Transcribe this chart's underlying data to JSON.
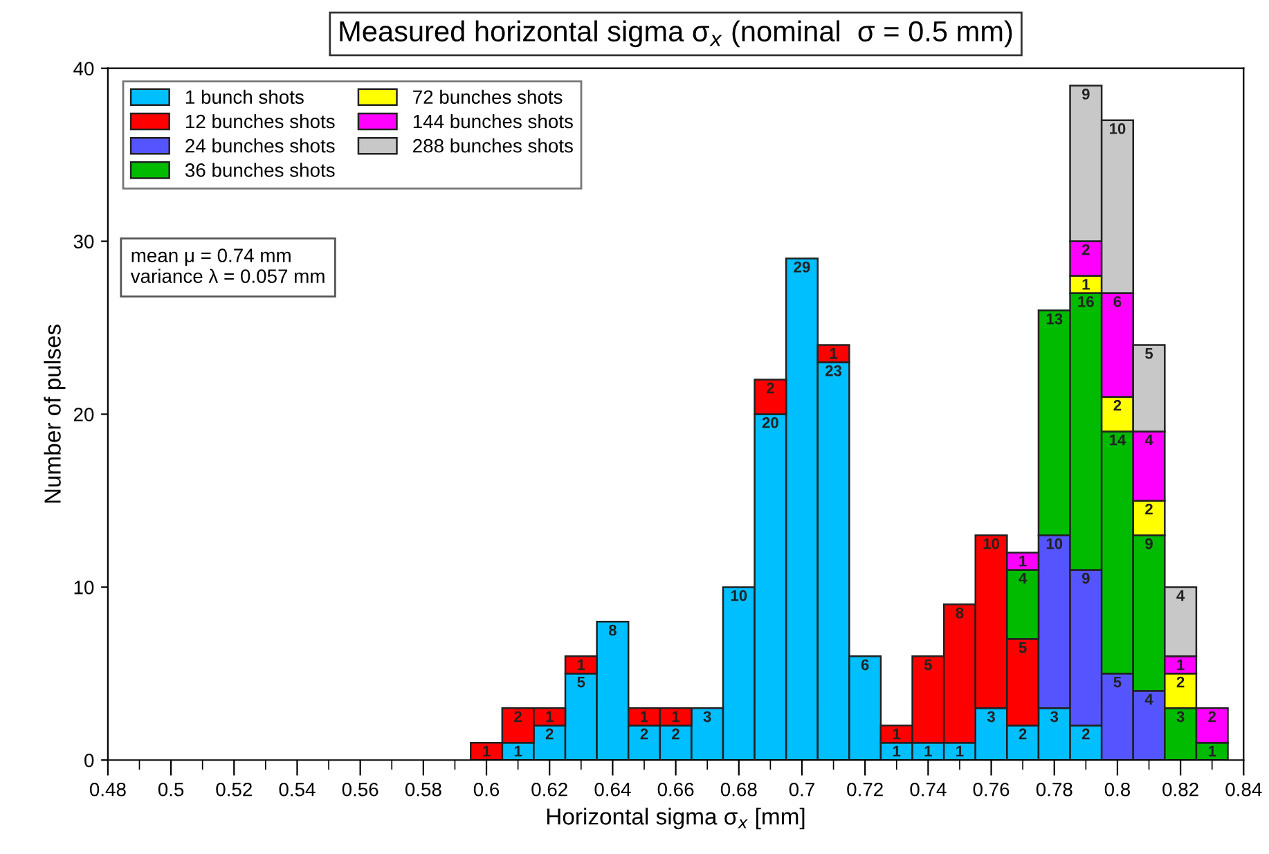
{
  "chart_data": {
    "type": "bar",
    "title": "Measured horizontal sigma σ$_{x}$ (nominal  σ = 0.5 mm)",
    "xlabel": "Horizontal sigma σ$_{x}$ [mm]",
    "ylabel": "Number of pulses",
    "x": [
      0.6,
      0.61,
      0.62,
      0.63,
      0.64,
      0.65,
      0.66,
      0.67,
      0.68,
      0.69,
      0.7,
      0.71,
      0.72,
      0.73,
      0.74,
      0.75,
      0.76,
      0.77,
      0.78,
      0.79,
      0.8,
      0.81,
      0.82,
      0.83
    ],
    "stacked": true,
    "series": [
      {
        "name": "1 bunch shots",
        "color": "#00bfff",
        "values": [
          null,
          1,
          2,
          5,
          8,
          2,
          2,
          3,
          10,
          20,
          29,
          23,
          6,
          1,
          1,
          1,
          3,
          2,
          3,
          2,
          null,
          null,
          null,
          null
        ]
      },
      {
        "name": "12 bunches shots",
        "color": "#ff0000",
        "values": [
          1,
          2,
          1,
          1,
          null,
          1,
          1,
          null,
          null,
          2,
          null,
          1,
          null,
          1,
          5,
          8,
          10,
          5,
          null,
          null,
          null,
          null,
          null,
          null
        ]
      },
      {
        "name": "24 bunches shots",
        "color": "#5555ff",
        "values": [
          null,
          null,
          null,
          null,
          null,
          null,
          null,
          null,
          null,
          null,
          null,
          null,
          null,
          null,
          null,
          null,
          null,
          null,
          10,
          9,
          5,
          4,
          null,
          null
        ]
      },
      {
        "name": "36 bunches shots",
        "color": "#00bb00",
        "values": [
          null,
          null,
          null,
          null,
          null,
          null,
          null,
          null,
          null,
          null,
          null,
          null,
          null,
          null,
          null,
          null,
          null,
          4,
          13,
          16,
          14,
          9,
          3,
          1
        ]
      },
      {
        "name": "72 bunches shots",
        "color": "#ffff00",
        "values": [
          null,
          null,
          null,
          null,
          null,
          null,
          null,
          null,
          null,
          null,
          null,
          null,
          null,
          null,
          null,
          null,
          null,
          null,
          null,
          1,
          2,
          2,
          2,
          null
        ]
      },
      {
        "name": "144 bunches shots",
        "color": "#ff00ff",
        "values": [
          null,
          null,
          null,
          null,
          null,
          null,
          null,
          null,
          null,
          null,
          null,
          null,
          null,
          null,
          null,
          null,
          null,
          1,
          null,
          2,
          6,
          4,
          1,
          2
        ]
      },
      {
        "name": "288 bunches shots",
        "color": "#c8c8c8",
        "values": [
          null,
          null,
          null,
          null,
          null,
          null,
          null,
          null,
          null,
          null,
          null,
          null,
          null,
          null,
          null,
          null,
          null,
          null,
          null,
          9,
          10,
          5,
          4,
          null
        ]
      }
    ],
    "data_labels": true,
    "xlim": [
      0.48,
      0.84
    ],
    "xticks": [
      0.48,
      0.5,
      0.52,
      0.54,
      0.56,
      0.58,
      0.6,
      0.62,
      0.64,
      0.66,
      0.68,
      0.7,
      0.72,
      0.74,
      0.76,
      0.78,
      0.8,
      0.82,
      0.84
    ],
    "ylim": [
      0,
      40
    ],
    "yticks": [
      0,
      10,
      20,
      30,
      40
    ],
    "grid": false,
    "legend": "top left",
    "annotations": [
      "mean μ = 0.74 mm\nvariance λ = 0.057 mm"
    ]
  }
}
